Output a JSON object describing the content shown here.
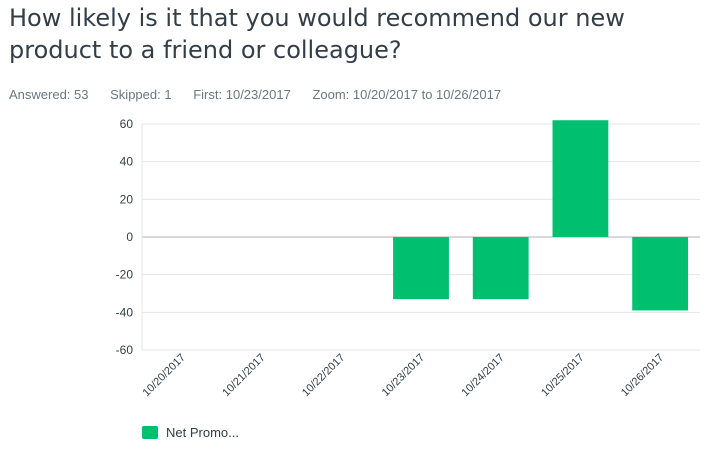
{
  "question": {
    "title": "How likely is it that you would recommend our new product to a friend or colleague?"
  },
  "stats": {
    "answered_label": "Answered:",
    "answered_value": "53",
    "skipped_label": "Skipped:",
    "skipped_value": "1",
    "first_label": "First:",
    "first_value": "10/23/2017",
    "zoom_label": "Zoom:",
    "zoom_value": "10/20/2017 to 10/26/2017"
  },
  "colors": {
    "bar": "#00bf6f",
    "grid": "#e6e6e6",
    "zero_line": "#d9d9d9"
  },
  "chart_data": {
    "type": "bar",
    "categories": [
      "10/20/2017",
      "10/21/2017",
      "10/22/2017",
      "10/23/2017",
      "10/24/2017",
      "10/25/2017",
      "10/26/2017"
    ],
    "series": [
      {
        "name": "Net Promo...",
        "values": [
          null,
          null,
          null,
          -33,
          -33,
          62,
          -39
        ]
      }
    ],
    "title": "",
    "xlabel": "",
    "ylabel": "",
    "ylim": [
      -60,
      60
    ],
    "yticks": [
      60,
      40,
      20,
      0,
      -20,
      -40,
      -60
    ],
    "grid": true,
    "legend_position": "bottom-left"
  },
  "legend": {
    "label": "Net Promo..."
  }
}
